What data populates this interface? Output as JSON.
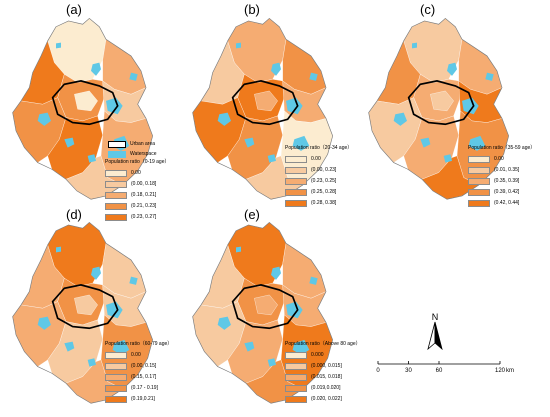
{
  "colors": {
    "c0": "#fcecd0",
    "c1": "#f7caa0",
    "c2": "#f5ac72",
    "c3": "#f19246",
    "c4": "#ef7a1c",
    "water": "#5fc8e6",
    "urban_outline": "#000000",
    "boundary": "#7a7a7a"
  },
  "panels": [
    {
      "letter": "(a)",
      "legend_title": "Population ratio（0-19 age）",
      "classes": [
        "0.00",
        "(0.00, 0.18]",
        "(0.18, 0.21]",
        "(0.21, 0.23]",
        "(0.23,  0.27]"
      ]
    },
    {
      "letter": "(b)",
      "legend_title": "Population ratio（20-34 age）",
      "classes": [
        "0.00",
        "(0.00, 0.23]",
        "(0.23, 0.25]",
        "(0.25, 0.28]",
        "(0.28, 0.38]"
      ]
    },
    {
      "letter": "(c)",
      "legend_title": "Population ratio（35-59 age）",
      "classes": [
        "0.00",
        "(0.01, 0.35]",
        "(0.35, 0.39]",
        "(0.39, 0.42]",
        "(0.42, 0.44]"
      ]
    },
    {
      "letter": "(d)",
      "legend_title": "Population ratio（60-79 age）",
      "classes": [
        "0.00",
        "(0.00, 0.15]",
        "(0.15, 0.17]",
        "(0.17 - 0.19]",
        "(0.19,0.21]"
      ]
    },
    {
      "letter": "(e)",
      "legend_title": "Population ratio（Above 80 age）",
      "classes": [
        "0.000",
        "(0.000, 0.015]",
        "(0.015, 0.018]",
        "(0.019,0.020]",
        "(0.020, 0.022]"
      ]
    }
  ],
  "key": {
    "urban_label": "Urban area",
    "water_label": "Waterspace"
  },
  "north_label": "N",
  "scale": {
    "ticks": [
      "0",
      "30",
      "60",
      "120"
    ],
    "unit": "km"
  }
}
